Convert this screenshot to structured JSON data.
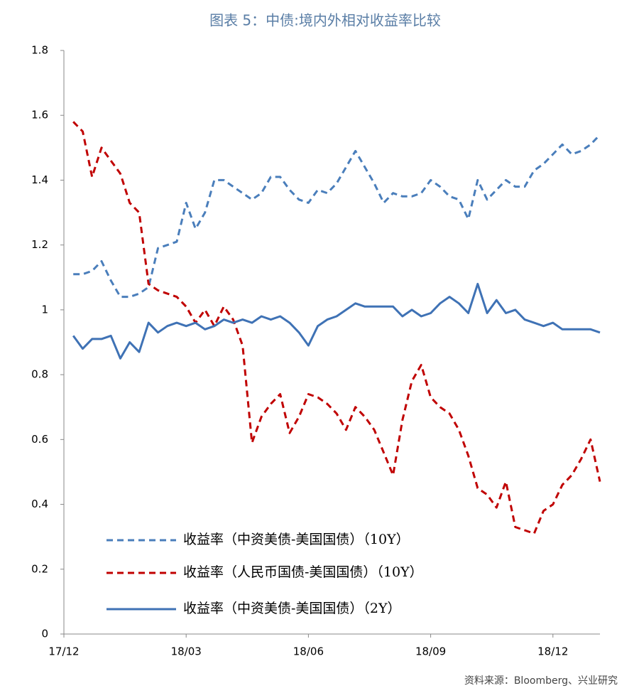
{
  "chart_data": {
    "type": "line",
    "title": "图表 5：中债:境内外相对收益率比较",
    "source": "资料来源：Bloomberg、兴业研究",
    "categories": [
      "17/12",
      null,
      null,
      null,
      null,
      null,
      null,
      null,
      null,
      null,
      null,
      null,
      null,
      "18/03",
      null,
      null,
      null,
      null,
      null,
      null,
      null,
      null,
      null,
      null,
      null,
      null,
      "18/06",
      null,
      null,
      null,
      null,
      null,
      null,
      null,
      null,
      null,
      null,
      null,
      null,
      "18/09",
      null,
      null,
      null,
      null,
      null,
      null,
      null,
      null,
      null,
      null,
      null,
      null,
      "18/12",
      null,
      null,
      null,
      null,
      null
    ],
    "ylim": [
      0,
      1.8
    ],
    "yticks": [
      0,
      0.2,
      0.4,
      0.6,
      0.8,
      1,
      1.2,
      1.4,
      1.6,
      1.8
    ],
    "grid": false,
    "series": [
      {
        "name": "收益率（中资美债-美国国债）（10Y）",
        "color": "#4a7ebb",
        "dash": true,
        "values": [
          null,
          1.11,
          1.11,
          1.12,
          1.15,
          1.09,
          1.04,
          1.04,
          1.05,
          1.07,
          1.19,
          1.2,
          1.21,
          1.33,
          1.25,
          1.3,
          1.4,
          1.4,
          1.38,
          1.36,
          1.34,
          1.36,
          1.41,
          1.41,
          1.37,
          1.34,
          1.33,
          1.37,
          1.36,
          1.39,
          1.44,
          1.49,
          1.44,
          1.39,
          1.33,
          1.36,
          1.35,
          1.35,
          1.36,
          1.4,
          1.38,
          1.35,
          1.34,
          1.28,
          1.4,
          1.34,
          1.37,
          1.4,
          1.38,
          1.38,
          1.43,
          1.45,
          1.48,
          1.51,
          1.48,
          1.49,
          1.51,
          1.54
        ]
      },
      {
        "name": "收益率（人民币国债-美国国债）（10Y）",
        "color": "#c00000",
        "dash": true,
        "values": [
          null,
          1.58,
          1.55,
          1.41,
          1.5,
          1.46,
          1.42,
          1.33,
          1.3,
          1.08,
          1.06,
          1.05,
          1.04,
          1.01,
          0.96,
          1.0,
          0.95,
          1.01,
          0.97,
          0.89,
          0.59,
          0.67,
          0.71,
          0.74,
          0.62,
          0.67,
          0.74,
          0.73,
          0.71,
          0.68,
          0.63,
          0.7,
          0.67,
          0.63,
          0.56,
          0.49,
          0.66,
          0.78,
          0.83,
          0.73,
          0.7,
          0.68,
          0.63,
          0.55,
          0.45,
          0.43,
          0.39,
          0.47,
          0.33,
          0.32,
          0.31,
          0.38,
          0.4,
          0.46,
          0.49,
          0.54,
          0.6,
          0.47
        ]
      },
      {
        "name": "收益率（中资美债-美国国债）（2Y）",
        "color": "#3f72b5",
        "dash": false,
        "values": [
          null,
          0.92,
          0.88,
          0.91,
          0.91,
          0.92,
          0.85,
          0.9,
          0.87,
          0.96,
          0.93,
          0.95,
          0.96,
          0.95,
          0.96,
          0.94,
          0.95,
          0.97,
          0.96,
          0.97,
          0.96,
          0.98,
          0.97,
          0.98,
          0.96,
          0.93,
          0.89,
          0.95,
          0.97,
          0.98,
          1.0,
          1.02,
          1.01,
          1.01,
          1.01,
          1.01,
          0.98,
          1.0,
          0.98,
          0.99,
          1.02,
          1.04,
          1.02,
          0.99,
          1.08,
          0.99,
          1.03,
          0.99,
          1.0,
          0.97,
          0.96,
          0.95,
          0.96,
          0.94,
          0.94,
          0.94,
          0.94,
          0.93
        ]
      }
    ]
  }
}
